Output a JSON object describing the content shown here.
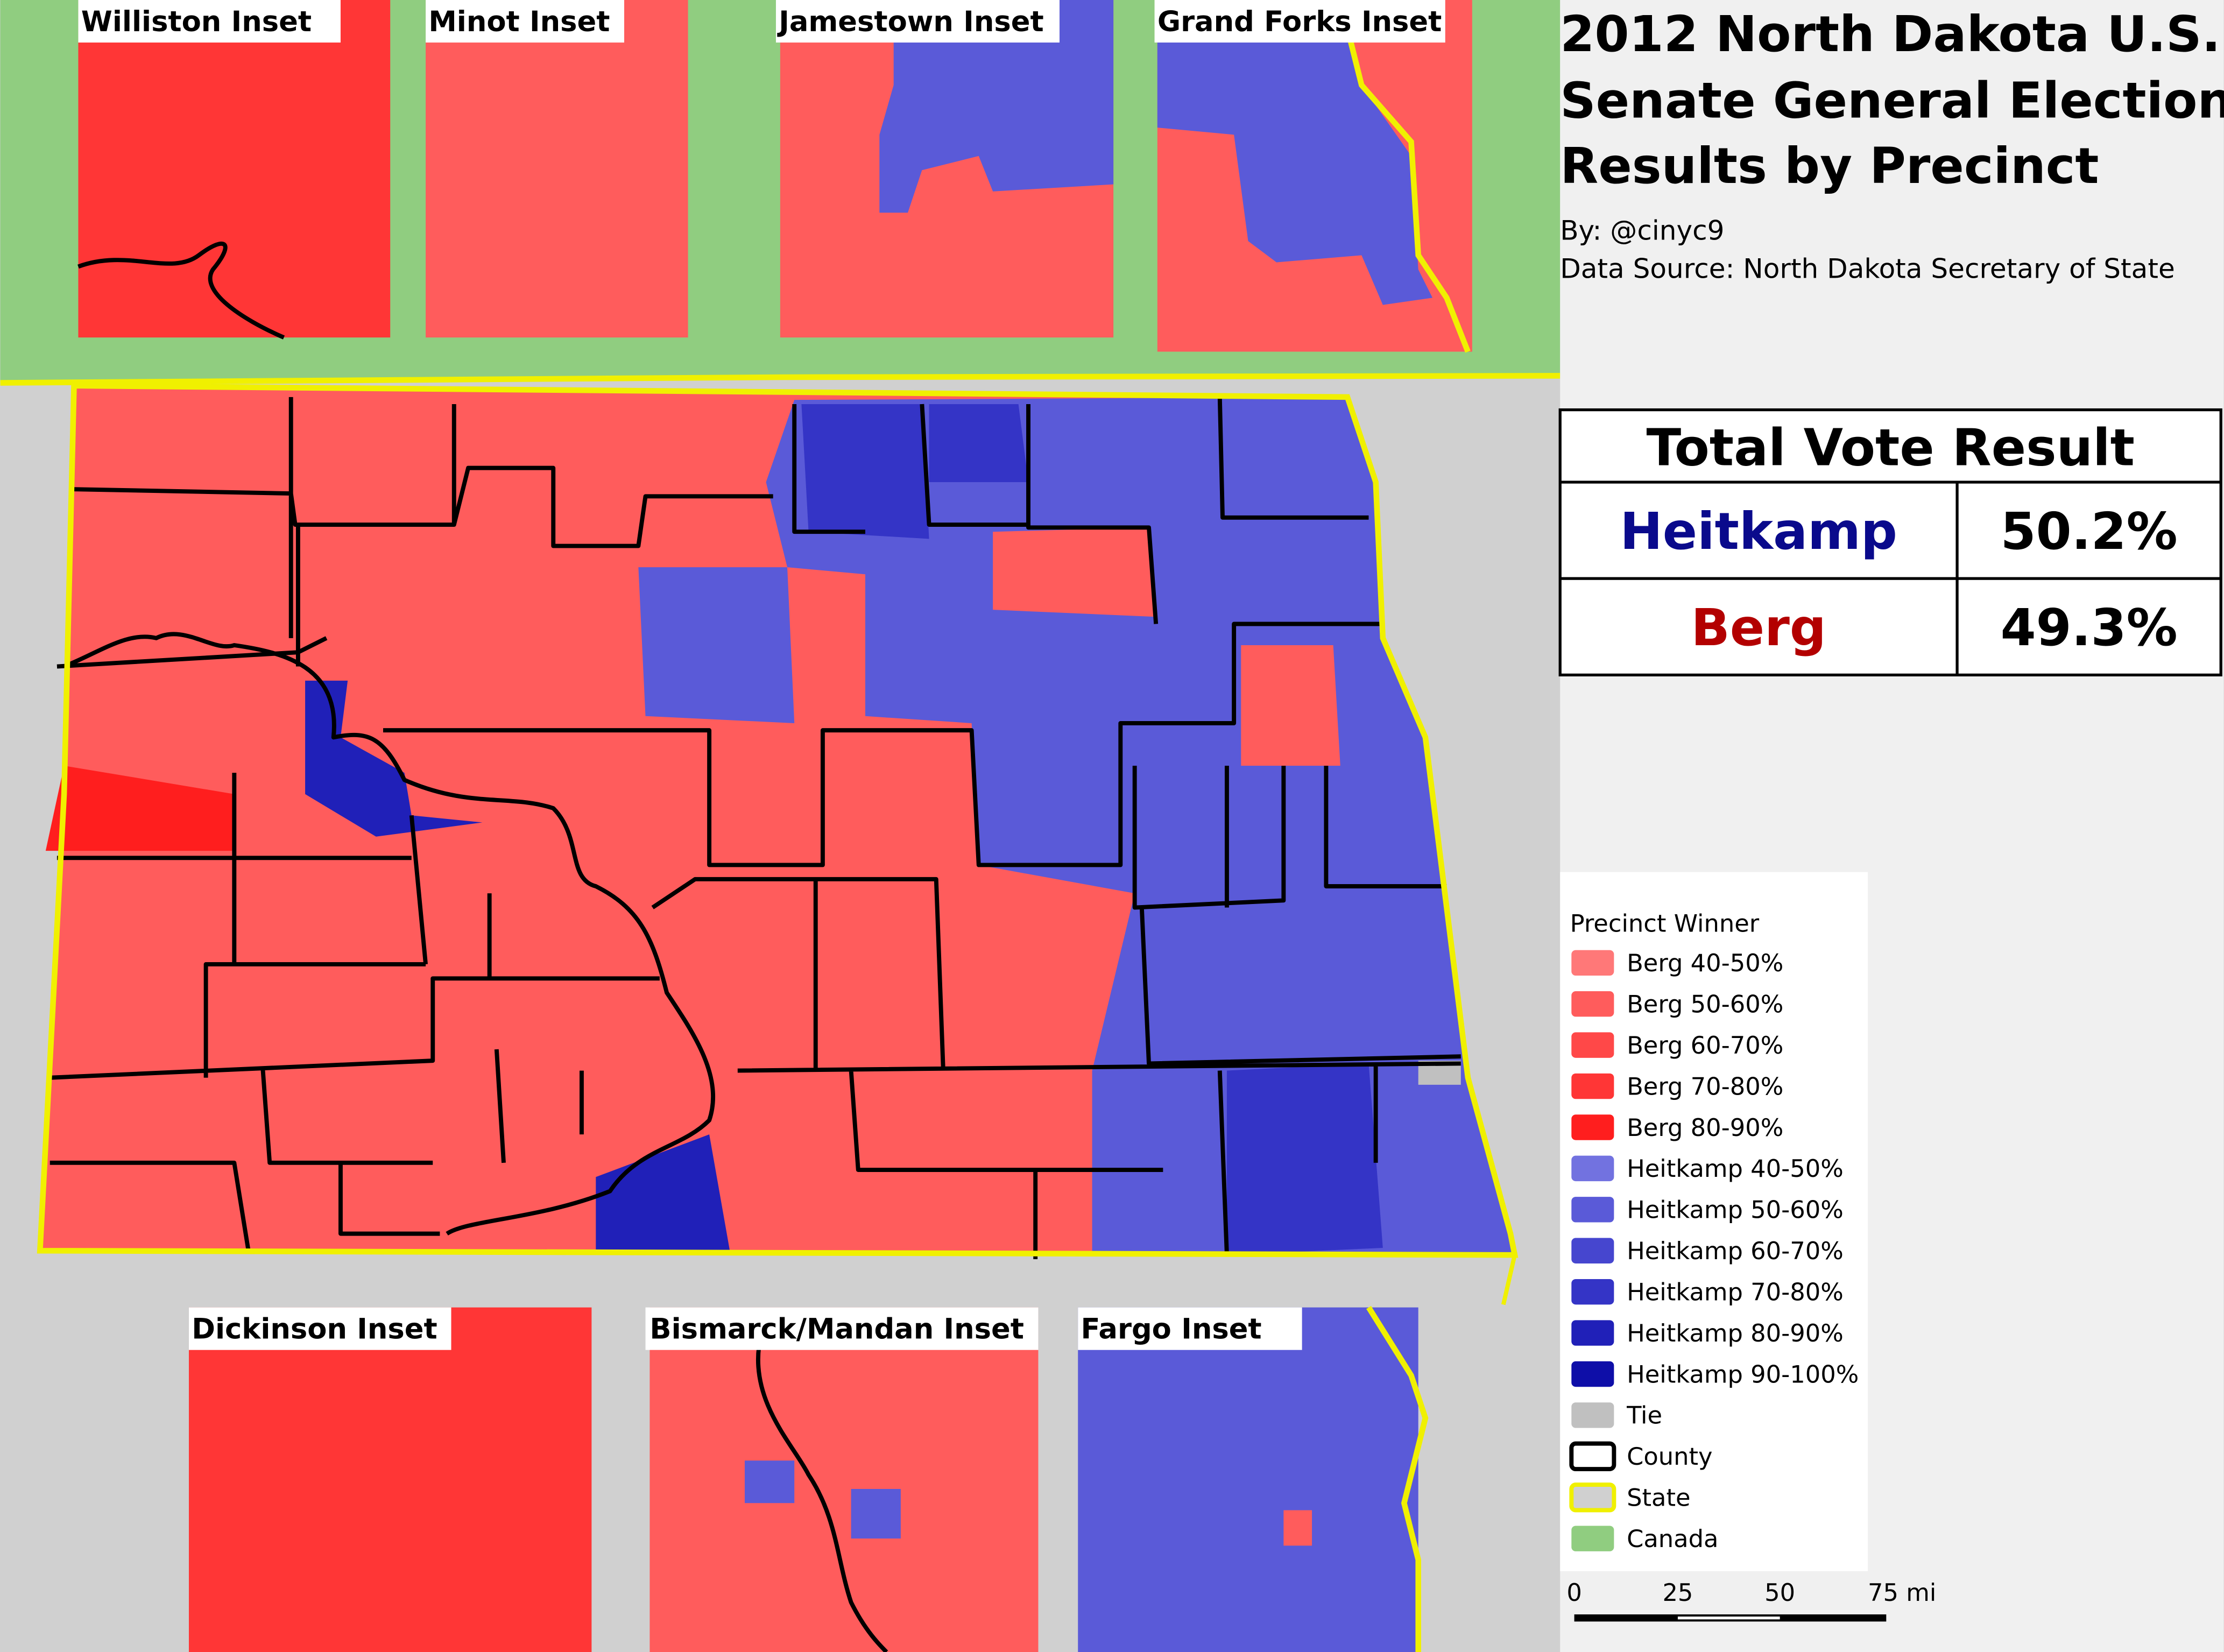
{
  "title_lines": [
    "2012 North Dakota U.S.",
    "Senate General Election",
    "Results by Precinct"
  ],
  "byline": "By: @cinyc9",
  "source": "Data Source: North Dakota Secretary of State",
  "insets": {
    "top": [
      "Williston Inset",
      "Minot Inset",
      "Jamestown Inset",
      "Grand Forks Inset"
    ],
    "bottom": [
      "Dickinson Inset",
      "Bismarck/Mandan Inset",
      "Fargo Inset"
    ]
  },
  "results": {
    "heading": "Total Vote Result",
    "rows": [
      {
        "candidate": "Heitkamp",
        "share": "50.2%",
        "color": "#0a0a8c"
      },
      {
        "candidate": "Berg",
        "share": "49.3%",
        "color": "#b30000"
      }
    ]
  },
  "legend": {
    "title": "Precinct Winner",
    "items": [
      {
        "label": "Berg 40-50%",
        "fill": "#ff7878",
        "stroke": "#ff7878"
      },
      {
        "label": "Berg 50-60%",
        "fill": "#ff5c5c",
        "stroke": "#ff5c5c"
      },
      {
        "label": "Berg 60-70%",
        "fill": "#ff4848",
        "stroke": "#ff4848"
      },
      {
        "label": "Berg 70-80%",
        "fill": "#ff3636",
        "stroke": "#ff3636"
      },
      {
        "label": "Berg 80-90%",
        "fill": "#ff1e1e",
        "stroke": "#ff1e1e"
      },
      {
        "label": "Heitkamp 40-50%",
        "fill": "#7272e0",
        "stroke": "#7272e0"
      },
      {
        "label": "Heitkamp 50-60%",
        "fill": "#5a5ad8",
        "stroke": "#5a5ad8"
      },
      {
        "label": "Heitkamp 60-70%",
        "fill": "#4646cf",
        "stroke": "#4646cf"
      },
      {
        "label": "Heitkamp 70-80%",
        "fill": "#3434c6",
        "stroke": "#3434c6"
      },
      {
        "label": "Heitkamp 80-90%",
        "fill": "#2020b8",
        "stroke": "#2020b8"
      },
      {
        "label": "Heitkamp 90-100%",
        "fill": "#0e0ea8",
        "stroke": "#0e0ea8"
      },
      {
        "label": "Tie",
        "fill": "#c0c0c0",
        "stroke": "#c0c0c0"
      },
      {
        "label": "County",
        "fill": "#ffffff",
        "stroke": "#000000"
      },
      {
        "label": "State",
        "fill": "#d0d0d0",
        "stroke": "#f0f000"
      },
      {
        "label": "Canada",
        "fill": "#90cd80",
        "stroke": "#90cd80"
      }
    ]
  },
  "scale_bar": {
    "ticks": [
      "0",
      "25",
      "50",
      "75 mi"
    ]
  }
}
